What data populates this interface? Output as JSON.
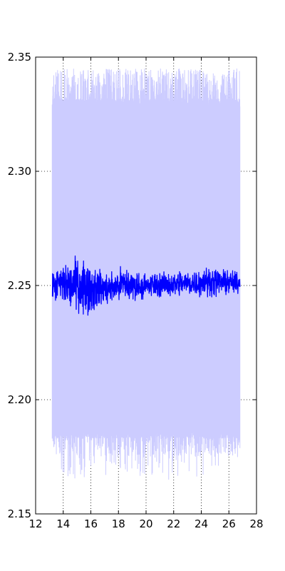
{
  "chart_data": {
    "type": "line",
    "title": "",
    "xlabel": "",
    "ylabel": "",
    "xlim": [
      12,
      28
    ],
    "ylim": [
      2.15,
      2.35
    ],
    "x_ticks": [
      12,
      14,
      16,
      18,
      20,
      22,
      24,
      26,
      28
    ],
    "y_ticks": [
      2.15,
      2.2,
      2.25,
      2.3,
      2.35
    ],
    "x_tick_labels": [
      "12",
      "14",
      "16",
      "18",
      "20",
      "22",
      "24",
      "26",
      "28"
    ],
    "y_tick_labels": [
      "2.15",
      "2.20",
      "2.25",
      "2.30",
      "2.35"
    ],
    "grid": true,
    "legend": "none",
    "x_range": [
      13.2,
      26.8
    ],
    "series": [
      {
        "role": "band",
        "color": "#ccccff",
        "typical_upper": 2.33,
        "typical_lower": 2.185,
        "max_upper": 2.345,
        "min_lower": 2.165
      },
      {
        "role": "line",
        "color": "#0000ff",
        "center": 2.25,
        "x": [
          13.2,
          13.5,
          14,
          14.5,
          15,
          15.5,
          16,
          16.5,
          17,
          17.5,
          18,
          18.5,
          19,
          19.5,
          20,
          20.5,
          21,
          21.5,
          22,
          22.5,
          23,
          23.5,
          24,
          24.5,
          25,
          25.5,
          26,
          26.5,
          26.8
        ],
        "upper": [
          2.256,
          2.258,
          2.262,
          2.26,
          2.264,
          2.263,
          2.26,
          2.258,
          2.256,
          2.256,
          2.258,
          2.259,
          2.257,
          2.256,
          2.255,
          2.256,
          2.256,
          2.256,
          2.256,
          2.257,
          2.257,
          2.257,
          2.258,
          2.258,
          2.258,
          2.257,
          2.257,
          2.256,
          2.255
        ],
        "lower": [
          2.243,
          2.242,
          2.24,
          2.239,
          2.238,
          2.237,
          2.237,
          2.24,
          2.241,
          2.242,
          2.242,
          2.242,
          2.243,
          2.244,
          2.244,
          2.244,
          2.245,
          2.245,
          2.245,
          2.245,
          2.245,
          2.245,
          2.245,
          2.245,
          2.245,
          2.246,
          2.246,
          2.246,
          2.247
        ]
      }
    ]
  }
}
